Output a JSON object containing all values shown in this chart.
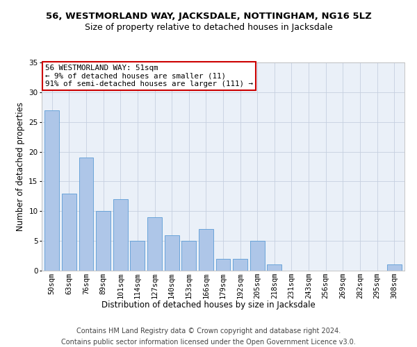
{
  "title": "56, WESTMORLAND WAY, JACKSDALE, NOTTINGHAM, NG16 5LZ",
  "subtitle": "Size of property relative to detached houses in Jacksdale",
  "xlabel": "Distribution of detached houses by size in Jacksdale",
  "ylabel": "Number of detached properties",
  "bar_labels": [
    "50sqm",
    "63sqm",
    "76sqm",
    "89sqm",
    "101sqm",
    "114sqm",
    "127sqm",
    "140sqm",
    "153sqm",
    "166sqm",
    "179sqm",
    "192sqm",
    "205sqm",
    "218sqm",
    "231sqm",
    "243sqm",
    "256sqm",
    "269sqm",
    "282sqm",
    "295sqm",
    "308sqm"
  ],
  "bar_values": [
    27,
    13,
    19,
    10,
    12,
    5,
    9,
    6,
    5,
    7,
    2,
    2,
    5,
    1,
    0,
    0,
    0,
    0,
    0,
    0,
    1
  ],
  "bar_color": "#aec6e8",
  "bar_edgecolor": "#5b9bd5",
  "ylim": [
    0,
    35
  ],
  "yticks": [
    0,
    5,
    10,
    15,
    20,
    25,
    30,
    35
  ],
  "annotation_line1": "56 WESTMORLAND WAY: 51sqm",
  "annotation_line2": "← 9% of detached houses are smaller (11)",
  "annotation_line3": "91% of semi-detached houses are larger (111) →",
  "annotation_box_color": "#ffffff",
  "annotation_border_color": "#cc0000",
  "footer_line1": "Contains HM Land Registry data © Crown copyright and database right 2024.",
  "footer_line2": "Contains public sector information licensed under the Open Government Licence v3.0.",
  "plot_bg_color": "#eaf0f8",
  "title_fontsize": 9.5,
  "subtitle_fontsize": 9,
  "axis_label_fontsize": 8.5,
  "tick_fontsize": 7.5,
  "footer_fontsize": 7,
  "ann_fontsize": 7.8
}
